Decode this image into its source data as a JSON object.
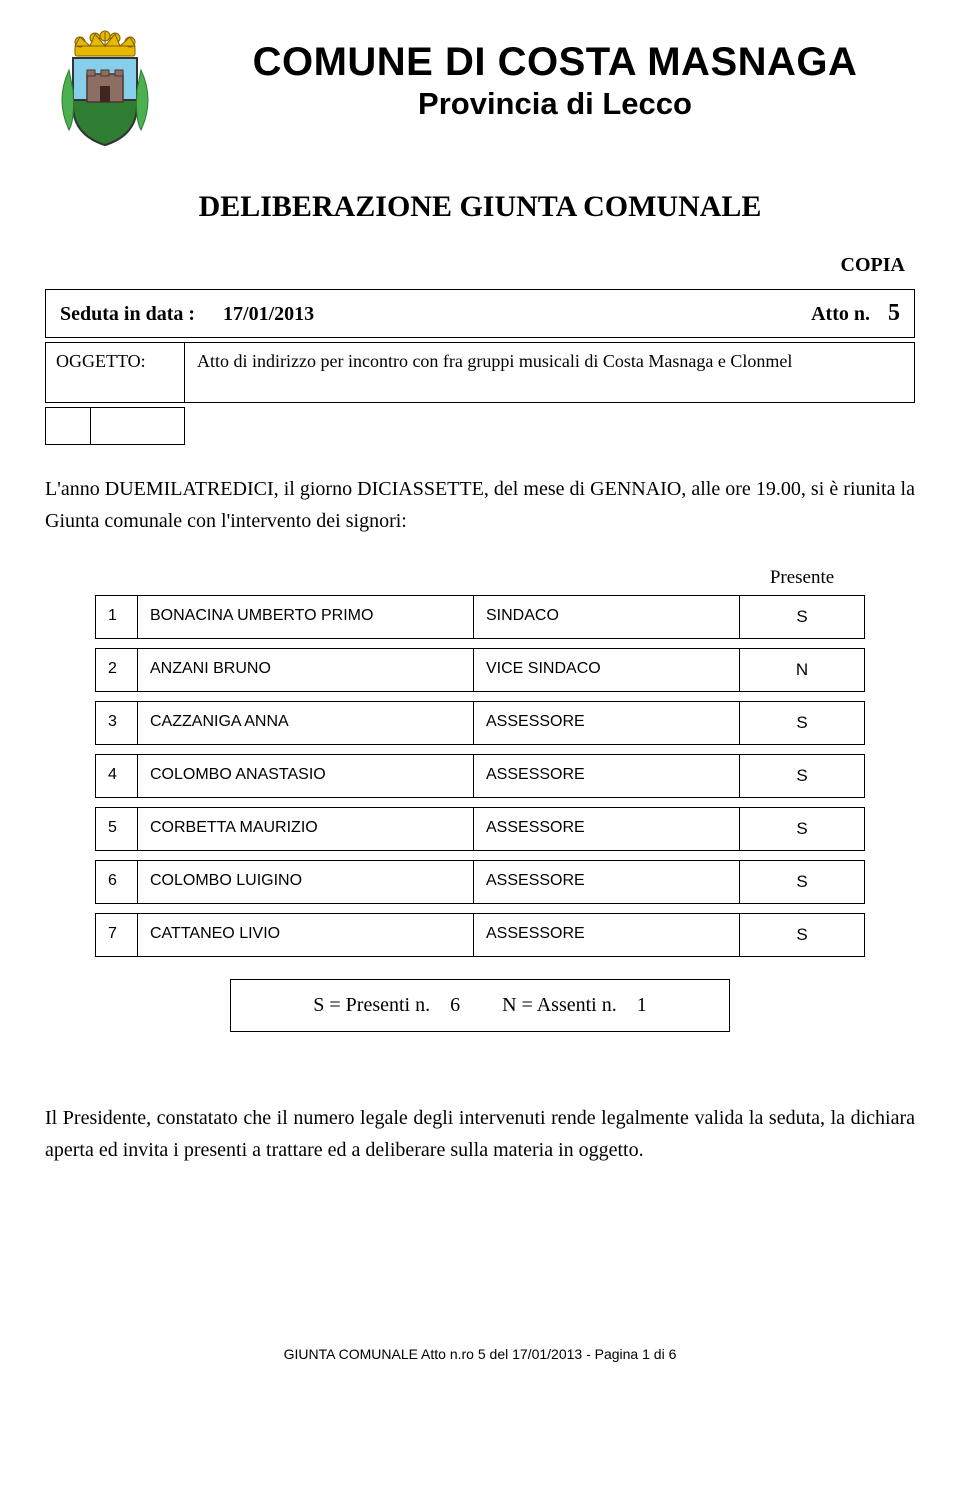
{
  "header": {
    "municipality": "COMUNE DI COSTA MASNAGA",
    "province": "Provincia di Lecco",
    "crest_colors": {
      "crown": "#e6b800",
      "shield_top": "#87ceeb",
      "shield_bottom": "#2e7d32",
      "castle": "#8d6e63",
      "outline": "#333333"
    }
  },
  "doc_title": "DELIBERAZIONE GIUNTA COMUNALE",
  "copia_label": "COPIA",
  "meta": {
    "seduta_label": "Seduta in data :",
    "date": "17/01/2013",
    "atto_label": "Atto n.",
    "atto_number": "5"
  },
  "subject": {
    "label": "OGGETTO:",
    "text": "Atto di indirizzo per  incontro con fra gruppi musicali di Costa Masnaga e Clonmel"
  },
  "preamble": "L'anno DUEMILATREDICI, il giorno DICIASSETTE, del mese di GENNAIO, alle ore 19.00, si è riunita la Giunta comunale con l'intervento dei signori:",
  "attendance": {
    "presente_header": "Presente",
    "rows": [
      {
        "n": "1",
        "name": "BONACINA UMBERTO PRIMO",
        "role": "SINDACO",
        "p": "S"
      },
      {
        "n": "2",
        "name": "ANZANI BRUNO",
        "role": "VICE SINDACO",
        "p": "N"
      },
      {
        "n": "3",
        "name": "CAZZANIGA ANNA",
        "role": "ASSESSORE",
        "p": "S"
      },
      {
        "n": "4",
        "name": "COLOMBO ANASTASIO",
        "role": "ASSESSORE",
        "p": "S"
      },
      {
        "n": "5",
        "name": "CORBETTA MAURIZIO",
        "role": "ASSESSORE",
        "p": "S"
      },
      {
        "n": "6",
        "name": "COLOMBO LUIGINO",
        "role": "ASSESSORE",
        "p": "S"
      },
      {
        "n": "7",
        "name": "CATTANEO LIVIO",
        "role": "ASSESSORE",
        "p": "S"
      }
    ]
  },
  "summary": {
    "present_label": "S = Presenti n.",
    "present_count": "6",
    "absent_label": "N = Assenti n.",
    "absent_count": "1"
  },
  "closing": "Il Presidente, constatato che il numero legale degli intervenuti rende legalmente valida la seduta, la dichiara aperta ed invita i presenti a trattare ed a deliberare sulla materia in oggetto.",
  "footer": "GIUNTA COMUNALE Atto n.ro 5 del 17/01/2013 - Pagina 1 di 6"
}
